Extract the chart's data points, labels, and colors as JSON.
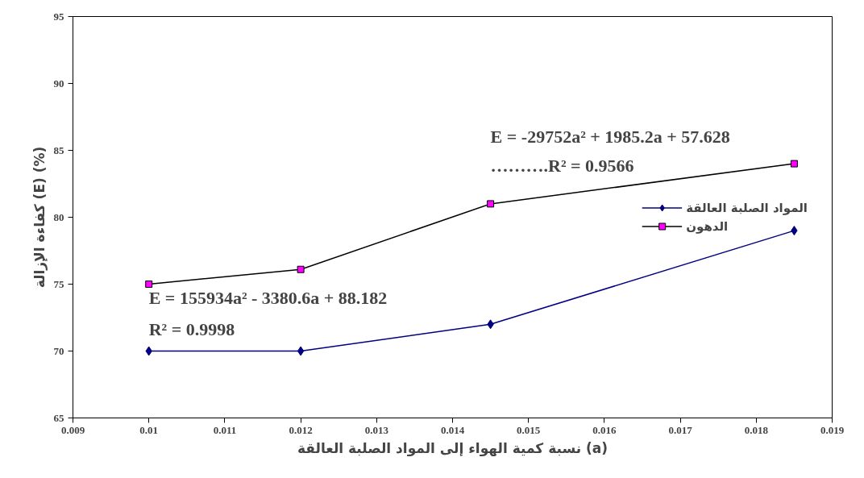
{
  "chart_data": {
    "type": "line",
    "xlabel": "نسبة كمية الهواء إلى المواد الصلبة العالقة (a)",
    "ylabel": "كفاءة الإزالة (E) (%)",
    "x": [
      0.01,
      0.012,
      0.0145,
      0.0185
    ],
    "series": [
      {
        "name": "المواد الصلبة العالقة",
        "color": "#000080",
        "marker": "diamond",
        "values": [
          70,
          70,
          72,
          79
        ]
      },
      {
        "name": "الدهون",
        "color": "#000000",
        "marker": "square",
        "colors": [
          "#ff00ff",
          "#ff00ff",
          "#ff00ff",
          "#ff00ff"
        ],
        "values": [
          75,
          76.1,
          81,
          84
        ]
      }
    ],
    "xlim": [
      0.009,
      0.019
    ],
    "xticks": [
      0.009,
      0.01,
      0.011,
      0.012,
      0.013,
      0.014,
      0.015,
      0.016,
      0.017,
      0.018,
      0.019
    ],
    "ylim": [
      65,
      95
    ],
    "yticks": [
      65,
      70,
      75,
      80,
      85,
      90,
      95
    ],
    "annotations": [
      "E = 155934a² - 3380.6a + 88.182",
      "R² = 0.9998",
      "E = -29752a² + 1985.2a + 57.628",
      "……….R² = 0.9566"
    ],
    "grid": false,
    "legend": "right",
    "line_style": "solid"
  }
}
